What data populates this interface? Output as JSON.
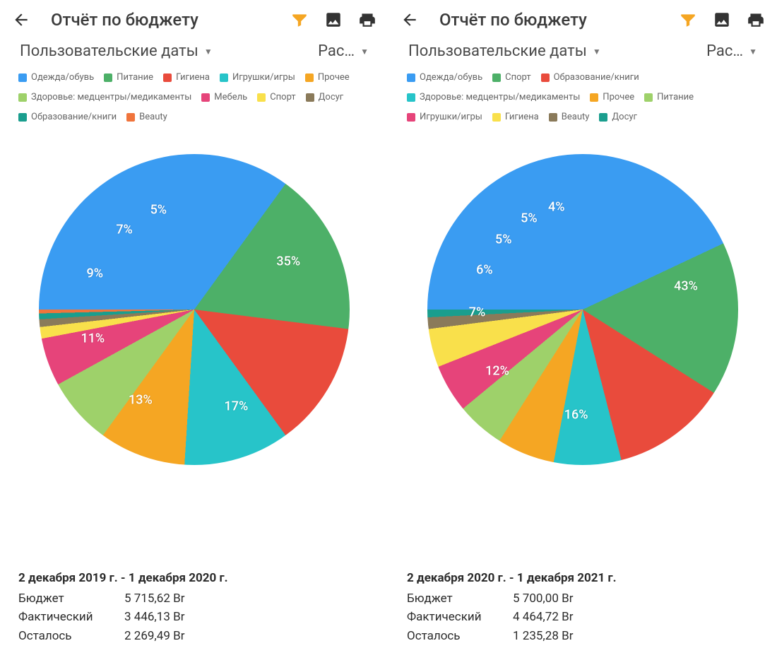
{
  "panels": [
    {
      "title": "Отчёт по бюджету",
      "selector_dates": "Пользовательские даты",
      "selector_type": "Рас…",
      "legend": [
        {
          "label": "Одежда/обувь",
          "color": "#3a9cf2"
        },
        {
          "label": "Питание",
          "color": "#4db068"
        },
        {
          "label": "Гигиена",
          "color": "#e94b3c"
        },
        {
          "label": "Игрушки/игры",
          "color": "#27c4c9"
        },
        {
          "label": "Прочее",
          "color": "#f5a623"
        },
        {
          "label": "Здоровье: медцентры/медикаменты",
          "color": "#9ed16a"
        },
        {
          "label": "Мебель",
          "color": "#e6447a"
        },
        {
          "label": "Спорт",
          "color": "#f9e04b"
        },
        {
          "label": "Досуг",
          "color": "#8a7a5a"
        },
        {
          "label": "Образование/книги",
          "color": "#1a9e8e"
        },
        {
          "label": "Beauty",
          "color": "#f0743c"
        }
      ],
      "chart": {
        "type": "pie",
        "radius": 220,
        "label_fontsize": 18,
        "label_color": "#ffffff",
        "background": "#ffffff",
        "start_angle": -90,
        "slices": [
          {
            "value": 35,
            "color": "#3a9cf2",
            "label": "35%"
          },
          {
            "value": 17,
            "color": "#4db068",
            "label": "17%"
          },
          {
            "value": 13,
            "color": "#e94b3c",
            "label": "13%"
          },
          {
            "value": 11,
            "color": "#27c4c9",
            "label": "11%"
          },
          {
            "value": 9,
            "color": "#f5a623",
            "label": "9%"
          },
          {
            "value": 7,
            "color": "#9ed16a",
            "label": "7%"
          },
          {
            "value": 5,
            "color": "#e6447a",
            "label": "5%"
          },
          {
            "value": 1.2,
            "color": "#f9e04b",
            "label": ""
          },
          {
            "value": 0.8,
            "color": "#8a7a5a",
            "label": ""
          },
          {
            "value": 0.6,
            "color": "#1a9e8e",
            "label": ""
          },
          {
            "value": 0.4,
            "color": "#f0743c",
            "label": ""
          }
        ]
      },
      "summary": {
        "range": "2 декабря 2019 г. - 1 декабря 2020 г.",
        "rows": [
          {
            "k": "Бюджет",
            "v": "5 715,62 Br"
          },
          {
            "k": "Фактический",
            "v": "3 446,13 Br"
          },
          {
            "k": "Осталось",
            "v": "2 269,49 Br"
          }
        ]
      }
    },
    {
      "title": "Отчёт по бюджету",
      "selector_dates": "Пользовательские даты",
      "selector_type": "Рас…",
      "legend": [
        {
          "label": "Одежда/обувь",
          "color": "#3a9cf2"
        },
        {
          "label": "Спорт",
          "color": "#4db068"
        },
        {
          "label": "Образование/книги",
          "color": "#e94b3c"
        },
        {
          "label": "Здоровье: медцентры/медикаменты",
          "color": "#27c4c9"
        },
        {
          "label": "Прочее",
          "color": "#f5a623"
        },
        {
          "label": "Питание",
          "color": "#9ed16a"
        },
        {
          "label": "Игрушки/игры",
          "color": "#e6447a"
        },
        {
          "label": "Гигиена",
          "color": "#f9e04b"
        },
        {
          "label": "Beauty",
          "color": "#8a7a5a"
        },
        {
          "label": "Досуг",
          "color": "#1a9e8e"
        }
      ],
      "chart": {
        "type": "pie",
        "radius": 220,
        "label_fontsize": 18,
        "label_color": "#ffffff",
        "background": "#ffffff",
        "start_angle": -90,
        "slices": [
          {
            "value": 43,
            "color": "#3a9cf2",
            "label": "43%"
          },
          {
            "value": 16,
            "color": "#4db068",
            "label": "16%"
          },
          {
            "value": 12,
            "color": "#e94b3c",
            "label": "12%"
          },
          {
            "value": 7,
            "color": "#27c4c9",
            "label": "7%"
          },
          {
            "value": 6,
            "color": "#f5a623",
            "label": "6%"
          },
          {
            "value": 5,
            "color": "#9ed16a",
            "label": "5%"
          },
          {
            "value": 5,
            "color": "#e6447a",
            "label": "5%"
          },
          {
            "value": 4,
            "color": "#f9e04b",
            "label": "4%"
          },
          {
            "value": 1.2,
            "color": "#8a7a5a",
            "label": ""
          },
          {
            "value": 0.8,
            "color": "#1a9e8e",
            "label": ""
          }
        ]
      },
      "summary": {
        "range": "2 декабря 2020 г. - 1 декабря 2021 г.",
        "rows": [
          {
            "k": "Бюджет",
            "v": "5 700,00 Br"
          },
          {
            "k": "Фактический",
            "v": "4 464,72 Br"
          },
          {
            "k": "Осталось",
            "v": "1 235,28 Br"
          }
        ]
      }
    }
  ],
  "icons": {
    "back": "arrow-left",
    "filter": "filter",
    "image": "image",
    "print": "printer",
    "dropdown": "▼"
  }
}
